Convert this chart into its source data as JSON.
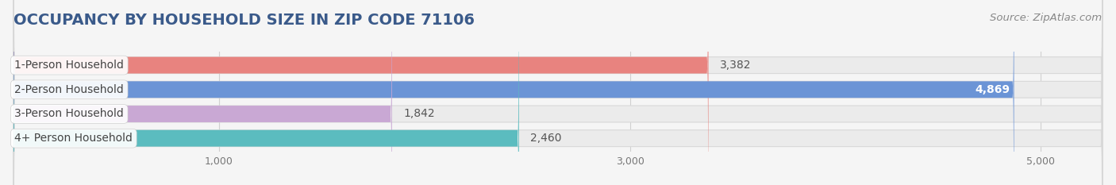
{
  "title": "OCCUPANCY BY HOUSEHOLD SIZE IN ZIP CODE 71106",
  "source": "Source: ZipAtlas.com",
  "categories": [
    "1-Person Household",
    "2-Person Household",
    "3-Person Household",
    "4+ Person Household"
  ],
  "values": [
    3382,
    4869,
    1842,
    2460
  ],
  "bar_colors": [
    "#e8837f",
    "#6b94d6",
    "#c9a8d4",
    "#5bbcbf"
  ],
  "xlim": [
    0,
    5300
  ],
  "xticks": [
    1000,
    3000,
    5000
  ],
  "xtick_labels": [
    "1,000",
    "3,000",
    "5,000"
  ],
  "background_color": "#f5f5f5",
  "bar_bg_color": "#ebebeb",
  "title_fontsize": 14,
  "label_fontsize": 10,
  "value_fontsize": 10,
  "source_fontsize": 9.5,
  "title_color": "#3a5a8a",
  "source_color": "#888888",
  "label_text_color": "#444444",
  "value_text_color_dark": "#555555",
  "value_text_color_light": "#ffffff"
}
